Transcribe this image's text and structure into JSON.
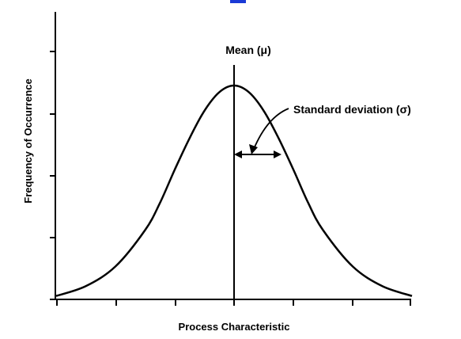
{
  "chart_data": {
    "type": "line",
    "xlabel": "Process Characteristic",
    "ylabel": "Frequency of Occurrence",
    "x_ticks_count": 7,
    "y_ticks_count": 5,
    "grid": false,
    "legend": "none",
    "curve": {
      "x": [
        -3,
        -2.5,
        -2,
        -1.5,
        -1.25,
        -1,
        -0.75,
        -0.5,
        -0.25,
        0,
        0.25,
        0.5,
        0.75,
        1,
        1.25,
        1.5,
        2,
        2.5,
        3
      ],
      "y": [
        0.016,
        0.062,
        0.154,
        0.324,
        0.451,
        0.607,
        0.754,
        0.882,
        0.969,
        1.0,
        0.969,
        0.882,
        0.754,
        0.607,
        0.451,
        0.324,
        0.154,
        0.062,
        0.016
      ]
    },
    "mean_x": 0,
    "sd_span": [
      0,
      0.8
    ],
    "annotations": {
      "mean": "Mean (μ)",
      "sd": "Standard deviation (σ)"
    },
    "colors": {
      "line": "#000000",
      "background": "#ffffff",
      "accent": "#1a3ad6"
    }
  }
}
